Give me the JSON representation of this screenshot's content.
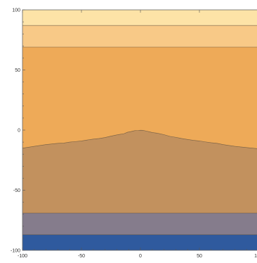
{
  "chart_data": {
    "type": "contour",
    "title": "",
    "xlabel": "",
    "ylabel": "",
    "xlim": [
      -100,
      100
    ],
    "ylim": [
      -100,
      100
    ],
    "x_ticks": [
      -100,
      -50,
      0,
      50,
      100
    ],
    "y_ticks": [
      -100,
      -50,
      0,
      50,
      100
    ],
    "x_tick_labels": [
      "-100",
      "-50",
      "0",
      "50",
      "100"
    ],
    "y_tick_labels": [
      "-100",
      "-50",
      "0",
      "50",
      "100"
    ],
    "grid": false,
    "bands": [
      {
        "from": 87,
        "to": 100,
        "color": "#fde3a7"
      },
      {
        "from": 69,
        "to": 87,
        "color": "#f8c987"
      },
      {
        "from": "boundary",
        "to": 69,
        "color": "#eeaa58"
      },
      {
        "from": -69,
        "to": "boundary",
        "color": "#c2915e"
      },
      {
        "from": -87,
        "to": -69,
        "color": "#857c8c"
      },
      {
        "from": -100,
        "to": -87,
        "color": "#2f5a9e"
      }
    ],
    "boundary": [
      [
        -100,
        -15
      ],
      [
        -90,
        -13.5
      ],
      [
        -80,
        -12
      ],
      [
        -70,
        -11
      ],
      [
        -65,
        -10.8
      ],
      [
        -60,
        -10
      ],
      [
        -55,
        -9.5
      ],
      [
        -50,
        -9
      ],
      [
        -45,
        -8.2
      ],
      [
        -40,
        -7.5
      ],
      [
        -35,
        -7
      ],
      [
        -30,
        -6.2
      ],
      [
        -25,
        -5
      ],
      [
        -20,
        -4
      ],
      [
        -17,
        -3.5
      ],
      [
        -14,
        -3
      ],
      [
        -11,
        -1.8
      ],
      [
        -8,
        -1.2
      ],
      [
        -5,
        -0.5
      ],
      [
        -2,
        -0.3
      ],
      [
        0,
        -0.1
      ],
      [
        2,
        -0.2
      ],
      [
        5,
        -0.8
      ],
      [
        8,
        -1.5
      ],
      [
        10,
        -2
      ],
      [
        14,
        -2.5
      ],
      [
        17,
        -3.2
      ],
      [
        20,
        -3.8
      ],
      [
        25,
        -5.2
      ],
      [
        30,
        -6
      ],
      [
        35,
        -7
      ],
      [
        40,
        -7.8
      ],
      [
        45,
        -8.5
      ],
      [
        50,
        -9
      ],
      [
        55,
        -9.8
      ],
      [
        60,
        -10.5
      ],
      [
        65,
        -11
      ],
      [
        70,
        -12
      ],
      [
        80,
        -13.5
      ],
      [
        90,
        -14.5
      ],
      [
        100,
        -15.5
      ]
    ],
    "level_lines": [
      87,
      69,
      -69,
      -87
    ]
  }
}
